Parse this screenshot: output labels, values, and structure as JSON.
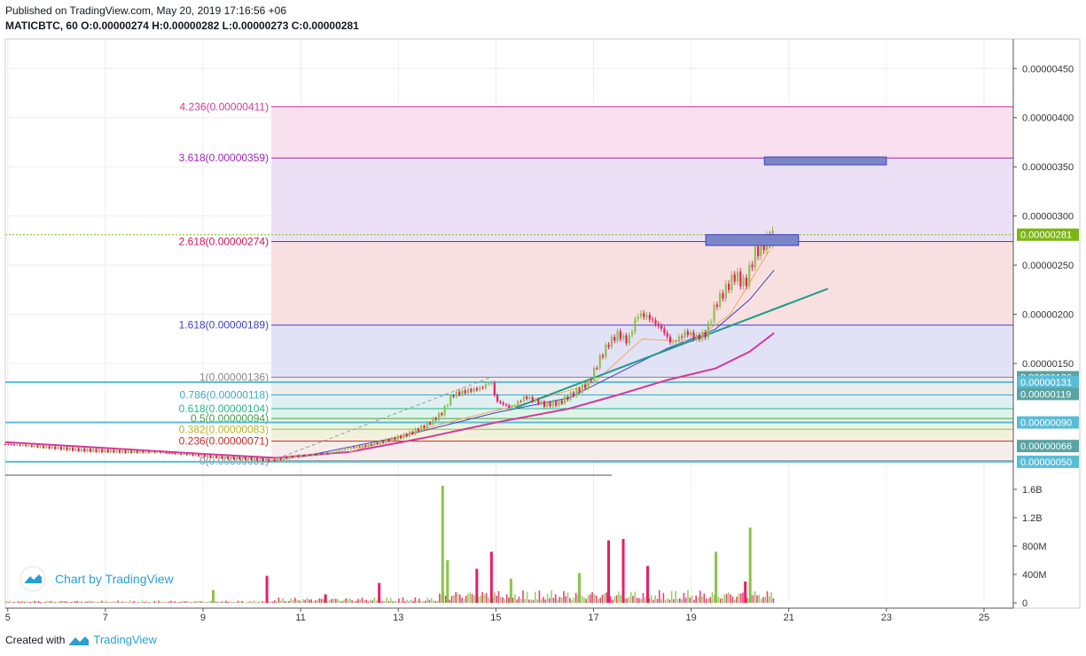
{
  "header": {
    "published": "Published on TradingView.com, May 20, 2019 17:16:56 +06",
    "symbol_line": "MATICBTC, 60",
    "o_label": "O:",
    "o_value": "0.00000274",
    "h_label": "H:",
    "h_value": "0.00000282",
    "l_label": "L:",
    "l_value": "0.00000273",
    "c_label": "C:",
    "c_value": "0.00000281"
  },
  "footer": {
    "created_with": "Created with",
    "brand": "TradingView"
  },
  "watermark": {
    "text": "Chart by TradingView"
  },
  "colors": {
    "up": "#8bc34a",
    "down": "#e91e63",
    "ma_fast": "#f4a460",
    "ma_mid": "#3f3fbf",
    "ma_slow": "#d6379b",
    "trendline": "#1e9c8c",
    "price_tag": "#7cb518",
    "box": "#7b86c9"
  },
  "chart_data": {
    "type": "candlestick",
    "symbol": "MATICBTC",
    "interval": "60",
    "x_axis": {
      "ticks": [
        "5",
        "7",
        "9",
        "11",
        "13",
        "15",
        "17",
        "19",
        "21",
        "23",
        "25"
      ],
      "tick_days": [
        5,
        7,
        9,
        11,
        13,
        15,
        17,
        19,
        21,
        23,
        25
      ],
      "range": [
        4.95,
        25.6
      ]
    },
    "y_axis": {
      "ticks": [
        {
          "value": 4.5e-06,
          "label": "0.00000450"
        },
        {
          "value": 4e-06,
          "label": "0.00000400"
        },
        {
          "value": 3.5e-06,
          "label": "0.00000350"
        },
        {
          "value": 3e-06,
          "label": "0.00000300"
        },
        {
          "value": 2.5e-06,
          "label": "0.00000250"
        },
        {
          "value": 2e-06,
          "label": "0.00000200"
        },
        {
          "value": 1.5e-06,
          "label": "0.00000150"
        }
      ],
      "range": [
        4e-07,
        4.8e-06
      ]
    },
    "price_tags": [
      {
        "value": 2.81e-06,
        "label": "0.00000281",
        "color": "#7cb518"
      },
      {
        "value": 1.36e-06,
        "label": "0.00000136",
        "color": "#5aa3a3"
      },
      {
        "value": 1.31e-06,
        "label": "0.00000131",
        "color": "#5bbcd6"
      },
      {
        "value": 1.19e-06,
        "label": "0.00000119",
        "color": "#5aa3a3"
      },
      {
        "value": 9e-07,
        "label": "0.00000090",
        "color": "#5bbcd6"
      },
      {
        "value": 6.6e-07,
        "label": "0.00000066",
        "color": "#5aa3a3"
      },
      {
        "value": 5e-07,
        "label": "0.00000050",
        "color": "#5bbcd6"
      }
    ],
    "fib_levels": [
      {
        "ratio": 4.236,
        "value": 4.11e-06,
        "label": "4.236(0.00000411)",
        "color": "#d6379b",
        "fill": "#f8e0ee"
      },
      {
        "ratio": 3.618,
        "value": 3.59e-06,
        "label": "3.618(0.00000359)",
        "color": "#9c27b0",
        "fill": "#ece0f6"
      },
      {
        "ratio": 2.618,
        "value": 2.74e-06,
        "label": "2.618(0.00000274)",
        "color": "#c2185b",
        "fill": "#f8e0e0"
      },
      {
        "ratio": 1.618,
        "value": 1.89e-06,
        "label": "1.618(0.00000189)",
        "color": "#3f3fbf",
        "fill": "#e2e2f6"
      },
      {
        "ratio": 1,
        "value": 1.36e-06,
        "label": "1(0.00000136)",
        "color": "#888888",
        "fill": "#ececec"
      },
      {
        "ratio": 0.786,
        "value": 1.18e-06,
        "label": "0.786(0.00000118)",
        "color": "#3aa9c9",
        "fill": "#def0f4"
      },
      {
        "ratio": 0.618,
        "value": 1.04e-06,
        "label": "0.618(0.00000104)",
        "color": "#2bb58a",
        "fill": "#def4ea"
      },
      {
        "ratio": 0.5,
        "value": 9.4e-07,
        "label": "0.5(0.00000094)",
        "color": "#43a047",
        "fill": "#e6f4e2"
      },
      {
        "ratio": 0.382,
        "value": 8.3e-07,
        "label": "0.382(0.00000083)",
        "color": "#b5b52b",
        "fill": "#f2f2dc"
      },
      {
        "ratio": 0.236,
        "value": 7.1e-07,
        "label": "0.236(0.00000071)",
        "color": "#c62828",
        "fill": "#f6ecec"
      },
      {
        "ratio": 0,
        "value": 5.1e-07,
        "label": "0(0.00000051)",
        "color": "#888888",
        "fill": "#f0f0f0"
      }
    ],
    "price_path": [
      [
        4.95,
        6.8e-07
      ],
      [
        5.5,
        6.6e-07
      ],
      [
        6.0,
        6.4e-07
      ],
      [
        6.5,
        6.2e-07
      ],
      [
        7.0,
        6.1e-07
      ],
      [
        7.5,
        6e-07
      ],
      [
        8.0,
        6e-07
      ],
      [
        8.5,
        5.8e-07
      ],
      [
        9.0,
        5.6e-07
      ],
      [
        9.5,
        5.4e-07
      ],
      [
        10.0,
        5.3e-07
      ],
      [
        10.4,
        5.1e-07
      ],
      [
        10.8,
        5.5e-07
      ],
      [
        11.2,
        5.7e-07
      ],
      [
        11.6,
        5.9e-07
      ],
      [
        12.0,
        6.4e-07
      ],
      [
        12.4,
        6.7e-07
      ],
      [
        12.8,
        7.2e-07
      ],
      [
        13.2,
        7.8e-07
      ],
      [
        13.6,
        8.8e-07
      ],
      [
        13.9,
        1e-06
      ],
      [
        14.1,
        1.18e-06
      ],
      [
        14.4,
        1.22e-06
      ],
      [
        14.7,
        1.25e-06
      ],
      [
        14.9,
        1.32e-06
      ],
      [
        15.0,
        1.12e-06
      ],
      [
        15.3,
        1.05e-06
      ],
      [
        15.6,
        1.16e-06
      ],
      [
        16.0,
        1.08e-06
      ],
      [
        16.3,
        1.1e-06
      ],
      [
        16.6,
        1.2e-06
      ],
      [
        16.9,
        1.3e-06
      ],
      [
        17.1,
        1.52e-06
      ],
      [
        17.3,
        1.7e-06
      ],
      [
        17.5,
        1.8e-06
      ],
      [
        17.7,
        1.72e-06
      ],
      [
        17.9,
        2e-06
      ],
      [
        18.1,
        1.98e-06
      ],
      [
        18.4,
        1.85e-06
      ],
      [
        18.6,
        1.7e-06
      ],
      [
        18.9,
        1.82e-06
      ],
      [
        19.1,
        1.76e-06
      ],
      [
        19.3,
        1.8e-06
      ],
      [
        19.5,
        2.1e-06
      ],
      [
        19.7,
        2.25e-06
      ],
      [
        19.9,
        2.4e-06
      ],
      [
        20.1,
        2.3e-06
      ],
      [
        20.3,
        2.62e-06
      ],
      [
        20.5,
        2.72e-06
      ],
      [
        20.7,
        2.81e-06
      ]
    ],
    "ma_fast": [
      [
        12.0,
        6e-07
      ],
      [
        14.0,
        9e-07
      ],
      [
        15.5,
        1.08e-06
      ],
      [
        17.0,
        1.3e-06
      ],
      [
        18.0,
        1.75e-06
      ],
      [
        19.0,
        1.72e-06
      ],
      [
        19.8,
        2e-06
      ],
      [
        20.6,
        2.65e-06
      ]
    ],
    "ma_mid": [
      [
        11.0,
        5.5e-07
      ],
      [
        13.0,
        7.5e-07
      ],
      [
        15.0,
        1e-06
      ],
      [
        16.5,
        1.15e-06
      ],
      [
        17.5,
        1.4e-06
      ],
      [
        18.5,
        1.65e-06
      ],
      [
        19.5,
        1.85e-06
      ],
      [
        20.2,
        2.15e-06
      ],
      [
        20.7,
        2.45e-06
      ]
    ],
    "ma_slow": [
      [
        4.95,
        7e-07
      ],
      [
        7.0,
        6.4e-07
      ],
      [
        9.0,
        5.8e-07
      ],
      [
        10.5,
        5.4e-07
      ],
      [
        12.0,
        6e-07
      ],
      [
        13.5,
        7.4e-07
      ],
      [
        15.0,
        9e-07
      ],
      [
        16.5,
        1.04e-06
      ],
      [
        17.5,
        1.18e-06
      ],
      [
        18.5,
        1.33e-06
      ],
      [
        19.5,
        1.45e-06
      ],
      [
        20.2,
        1.62e-06
      ],
      [
        20.7,
        1.81e-06
      ]
    ],
    "trendline": [
      [
        15.4,
        1.05e-06
      ],
      [
        21.8,
        2.26e-06
      ]
    ],
    "dashed_line": [
      [
        10.4,
        5.1e-07
      ],
      [
        14.9,
        1.36e-06
      ]
    ],
    "boxes": [
      {
        "x": [
          20.5,
          23.0
        ],
        "y": [
          3.52e-06,
          3.6e-06
        ]
      },
      {
        "x": [
          19.3,
          21.2
        ],
        "y": [
          2.7e-06,
          2.81e-06
        ]
      }
    ],
    "volume": {
      "ticks": [
        {
          "value": 0,
          "label": "0"
        },
        {
          "value": 400,
          "label": "400M"
        },
        {
          "value": 800,
          "label": "800M"
        },
        {
          "value": 1200,
          "label": "1.2B"
        },
        {
          "value": 1600,
          "label": "1.6B"
        }
      ],
      "range": [
        0,
        1750
      ],
      "spikes": [
        [
          10.3,
          380,
          "down"
        ],
        [
          9.2,
          180,
          "up"
        ],
        [
          11.5,
          120,
          "down"
        ],
        [
          12.6,
          280,
          "down"
        ],
        [
          13.9,
          1650,
          "up"
        ],
        [
          14.0,
          600,
          "up"
        ],
        [
          14.6,
          480,
          "down"
        ],
        [
          14.9,
          720,
          "down"
        ],
        [
          15.3,
          340,
          "up"
        ],
        [
          16.7,
          420,
          "up"
        ],
        [
          17.3,
          880,
          "down"
        ],
        [
          17.6,
          900,
          "down"
        ],
        [
          18.1,
          520,
          "down"
        ],
        [
          19.5,
          720,
          "up"
        ],
        [
          20.2,
          1060,
          "up"
        ],
        [
          20.1,
          300,
          "down"
        ]
      ]
    }
  }
}
